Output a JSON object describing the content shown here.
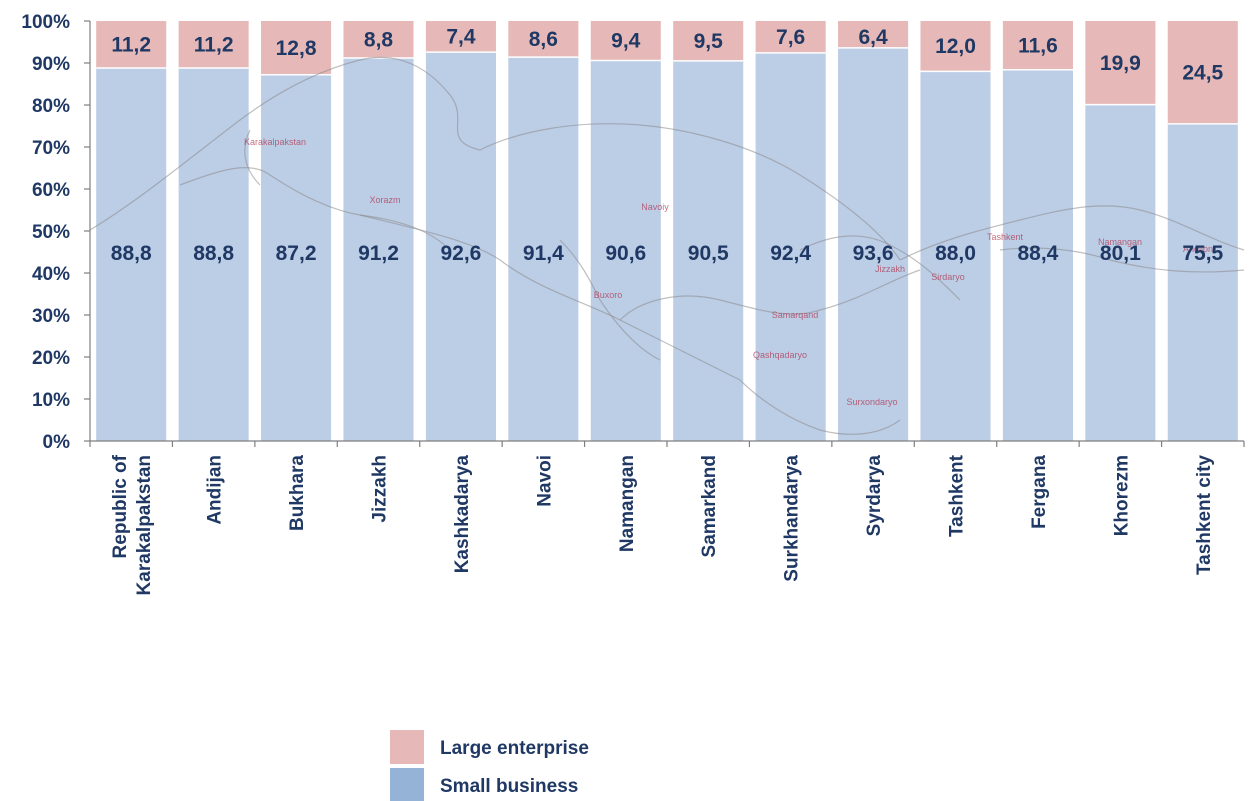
{
  "chart_data": {
    "type": "bar",
    "stacked": true,
    "percent": true,
    "categories": [
      [
        "Republic of",
        "Karakalpakstan"
      ],
      [
        "Andijan"
      ],
      [
        "Bukhara"
      ],
      [
        "Jizzakh"
      ],
      [
        "Kashkadarya"
      ],
      [
        "Navoi"
      ],
      [
        "Namangan"
      ],
      [
        "Samarkand"
      ],
      [
        "Surkhandarya"
      ],
      [
        "Syrdarya"
      ],
      [
        "Tashkent"
      ],
      [
        "Fergana"
      ],
      [
        "Khorezm"
      ],
      [
        "Tashkent city"
      ]
    ],
    "series": [
      {
        "name": "Small business",
        "color": "#bccde6",
        "legend_color": "#95b3d7",
        "values": [
          88.8,
          88.8,
          87.2,
          91.2,
          92.6,
          91.4,
          90.6,
          90.5,
          92.4,
          93.6,
          88.0,
          88.4,
          80.1,
          75.5
        ],
        "labels": [
          "88,8",
          "88,8",
          "87,2",
          "91,2",
          "92,6",
          "91,4",
          "90,6",
          "90,5",
          "92,4",
          "93,6",
          "88,0",
          "88,4",
          "80,1",
          "75,5"
        ]
      },
      {
        "name": "Large enterprise",
        "color": "#e6b9b8",
        "legend_color": "#e6b9b8",
        "values": [
          11.2,
          11.2,
          12.8,
          8.8,
          7.4,
          8.6,
          9.4,
          9.5,
          7.6,
          6.4,
          12.0,
          11.6,
          19.9,
          24.5
        ],
        "labels": [
          "11,2",
          "11,2",
          "12,8",
          "8,8",
          "7,4",
          "8,6",
          "9,4",
          "9,5",
          "7,6",
          "6,4",
          "12,0",
          "11,6",
          "19,9",
          "24,5"
        ]
      }
    ],
    "ylim": [
      0,
      100
    ],
    "yticks": [
      "0%",
      "10%",
      "20%",
      "30%",
      "40%",
      "50%",
      "60%",
      "70%",
      "80%",
      "90%",
      "100%"
    ],
    "legend_position": "bottom",
    "legend_order": [
      "Large enterprise",
      "Small business"
    ],
    "background_map_labels": [
      "Karakalpakstan",
      "Xorazm",
      "Navoiy",
      "Buxoro",
      "Samarqand",
      "Qashqadaryo",
      "Surxondaryo",
      "Jizzakh",
      "Sirdaryo",
      "Tashkent",
      "Namangan",
      "Andijon"
    ]
  }
}
